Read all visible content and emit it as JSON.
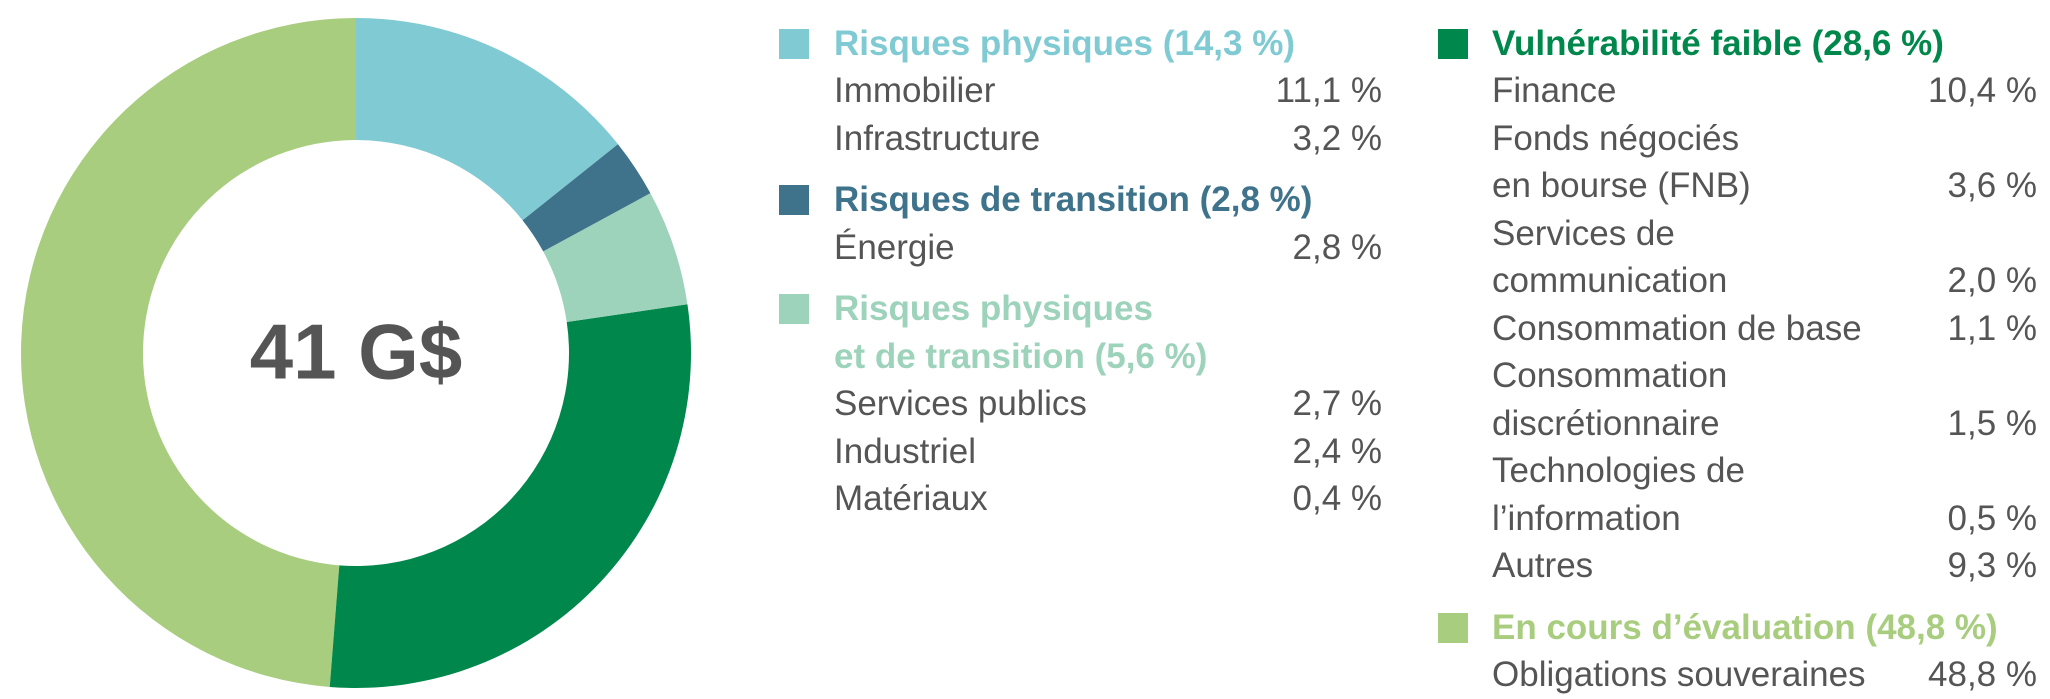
{
  "chart_data": {
    "type": "pie",
    "center_label": "41 G$",
    "series": [
      {
        "name": "Risques physiques (14,3 %)",
        "color": "#7fcad3",
        "value": 14.3,
        "items": [
          {
            "label": "Immobilier",
            "value": "11,1 %"
          },
          {
            "label": "Infrastructure",
            "value": "3,2 %"
          }
        ]
      },
      {
        "name": "Risques de transition (2,8 %)",
        "color": "#3e738b",
        "value": 2.8,
        "items": [
          {
            "label": "Énergie",
            "value": "2,8 %"
          }
        ]
      },
      {
        "name": "Risques physiques\net de transition (5,6 %)",
        "color": "#9dd2bb",
        "value": 5.6,
        "items": [
          {
            "label": "Services publics",
            "value": "2,7 %"
          },
          {
            "label": "Industriel",
            "value": "2,4 %"
          },
          {
            "label": "Matériaux",
            "value": "0,4 %"
          }
        ]
      },
      {
        "name": "Vulnérabilité faible (28,6 %)",
        "color": "#00874b",
        "value": 28.6,
        "items": [
          {
            "label": "Finance",
            "value": "10,4 %"
          },
          {
            "label": "Fonds négociés\nen bourse (FNB)",
            "value": "3,6 %"
          },
          {
            "label": "Services de\ncommunication",
            "value": "2,0 %"
          },
          {
            "label": "Consommation de base",
            "value": "1,1 %"
          },
          {
            "label": "Consommation\ndiscrétionnaire",
            "value": "1,5 %"
          },
          {
            "label": "Technologies de\nl’information",
            "value": "0,5 %"
          },
          {
            "label": "Autres",
            "value": "9,3 %"
          }
        ]
      },
      {
        "name": "En cours d’évaluation (48,8 %)",
        "color": "#a8cd7e",
        "value": 48.8,
        "items": [
          {
            "label": "Obligations souveraines",
            "value": "48,8 %"
          }
        ]
      }
    ]
  }
}
